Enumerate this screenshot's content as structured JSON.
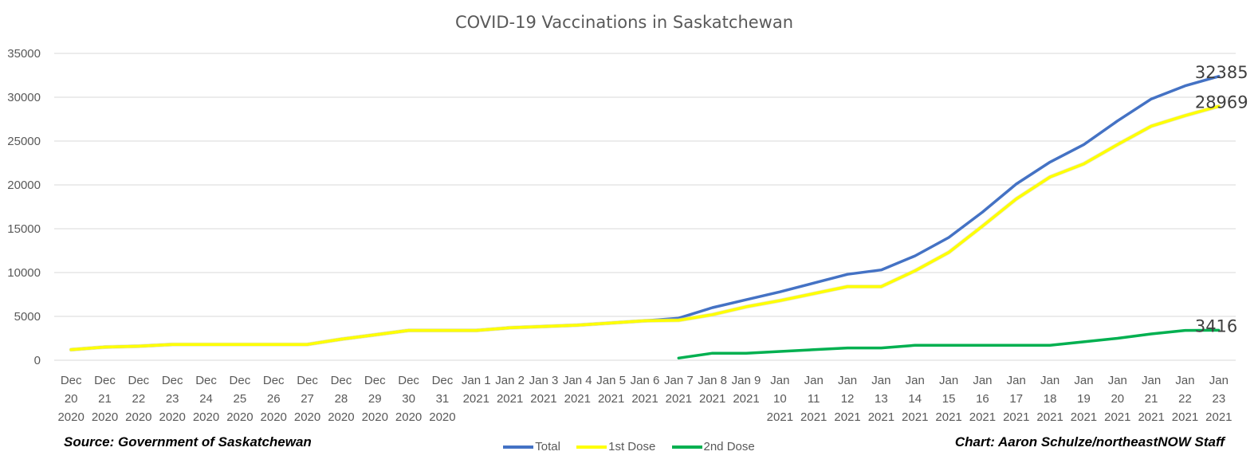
{
  "chart_data": {
    "type": "line",
    "title": "COVID-19 Vaccinations in Saskatchewan",
    "ylim": [
      0,
      35000
    ],
    "yticks": [
      0,
      5000,
      10000,
      15000,
      20000,
      25000,
      30000,
      35000
    ],
    "grid": true,
    "legend_position": "bottom",
    "categories": [
      [
        "Dec",
        "20",
        "2020"
      ],
      [
        "Dec",
        "21",
        "2020"
      ],
      [
        "Dec",
        "22",
        "2020"
      ],
      [
        "Dec",
        "23",
        "2020"
      ],
      [
        "Dec",
        "24",
        "2020"
      ],
      [
        "Dec",
        "25",
        "2020"
      ],
      [
        "Dec",
        "26",
        "2020"
      ],
      [
        "Dec",
        "27",
        "2020"
      ],
      [
        "Dec",
        "28",
        "2020"
      ],
      [
        "Dec",
        "29",
        "2020"
      ],
      [
        "Dec",
        "30",
        "2020"
      ],
      [
        "Dec",
        "31",
        "2020"
      ],
      [
        "Jan 1",
        "2021"
      ],
      [
        "Jan 2",
        "2021"
      ],
      [
        "Jan 3",
        "2021"
      ],
      [
        "Jan 4",
        "2021"
      ],
      [
        "Jan 5",
        "2021"
      ],
      [
        "Jan 6",
        "2021"
      ],
      [
        "Jan 7",
        "2021"
      ],
      [
        "Jan 8",
        "2021"
      ],
      [
        "Jan 9",
        "2021"
      ],
      [
        "Jan",
        "10",
        "2021"
      ],
      [
        "Jan",
        "11",
        "2021"
      ],
      [
        "Jan",
        "12",
        "2021"
      ],
      [
        "Jan",
        "13",
        "2021"
      ],
      [
        "Jan",
        "14",
        "2021"
      ],
      [
        "Jan",
        "15",
        "2021"
      ],
      [
        "Jan",
        "16",
        "2021"
      ],
      [
        "Jan",
        "17",
        "2021"
      ],
      [
        "Jan",
        "18",
        "2021"
      ],
      [
        "Jan",
        "19",
        "2021"
      ],
      [
        "Jan",
        "20",
        "2021"
      ],
      [
        "Jan",
        "21",
        "2021"
      ],
      [
        "Jan",
        "22",
        "2021"
      ],
      [
        "Jan",
        "23",
        "2021"
      ]
    ],
    "series": [
      {
        "name": "Total",
        "color": "#4472C4",
        "values": [
          1200,
          1500,
          1600,
          1800,
          1800,
          1800,
          1800,
          1800,
          2400,
          2900,
          3400,
          3400,
          3400,
          3700,
          3850,
          4000,
          4250,
          4500,
          4800,
          6000,
          6900,
          7800,
          8800,
          9800,
          10300,
          11900,
          14000,
          16900,
          20100,
          22600,
          24600,
          27300,
          29800,
          31300,
          32385
        ],
        "end_label": "32385"
      },
      {
        "name": "1st Dose",
        "color": "#FFFF00",
        "values": [
          1200,
          1500,
          1600,
          1800,
          1800,
          1800,
          1800,
          1800,
          2400,
          2900,
          3400,
          3400,
          3400,
          3700,
          3850,
          4000,
          4250,
          4500,
          4550,
          5200,
          6100,
          6800,
          7600,
          8400,
          8400,
          10200,
          12300,
          15300,
          18400,
          20900,
          22400,
          24600,
          26700,
          27900,
          28969
        ],
        "end_label": "28969"
      },
      {
        "name": "2nd Dose",
        "color": "#00B050",
        "values": [
          null,
          null,
          null,
          null,
          null,
          null,
          null,
          null,
          null,
          null,
          null,
          null,
          null,
          null,
          null,
          null,
          null,
          null,
          250,
          800,
          800,
          1000,
          1200,
          1400,
          1400,
          1700,
          1700,
          1700,
          1700,
          1700,
          2100,
          2500,
          3000,
          3400,
          3416
        ],
        "end_label": "3416"
      }
    ]
  },
  "footer": {
    "source": "Source: Government of Saskatchewan",
    "credit": "Chart: Aaron Schulze/northeastNOW Staff"
  },
  "legend": {
    "items": [
      "Total",
      "1st Dose",
      "2nd Dose"
    ]
  }
}
